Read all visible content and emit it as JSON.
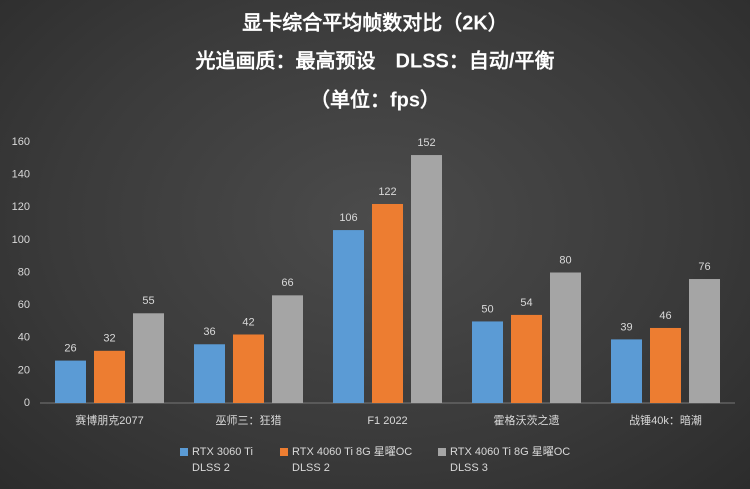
{
  "chart_data": {
    "type": "bar",
    "title": "显卡综合平均帧数对比（2K）",
    "subtitle": [
      "光追画质：最高预设　DLSS：自动/平衡",
      "（单位：fps）"
    ],
    "categories": [
      "赛博朋克2077",
      "巫师三：狂猎",
      "F1 2022",
      "霍格沃茨之遗",
      "战锤40k：暗潮"
    ],
    "series": [
      {
        "name": "RTX 3060 Ti\nDLSS 2",
        "color": "#5b9bd5",
        "values": [
          26,
          36,
          106,
          50,
          39
        ]
      },
      {
        "name": "RTX 4060 Ti 8G 星曜OC\nDLSS 2",
        "color": "#ed7d31",
        "values": [
          32,
          42,
          122,
          54,
          46
        ]
      },
      {
        "name": "RTX 4060 Ti 8G 星曜OC\nDLSS 3",
        "color": "#a5a5a5",
        "values": [
          55,
          66,
          152,
          80,
          76
        ]
      }
    ],
    "ylim": [
      0,
      160
    ],
    "yticks": [
      0,
      20,
      40,
      60,
      80,
      100,
      120,
      140,
      160
    ],
    "grid": false
  }
}
